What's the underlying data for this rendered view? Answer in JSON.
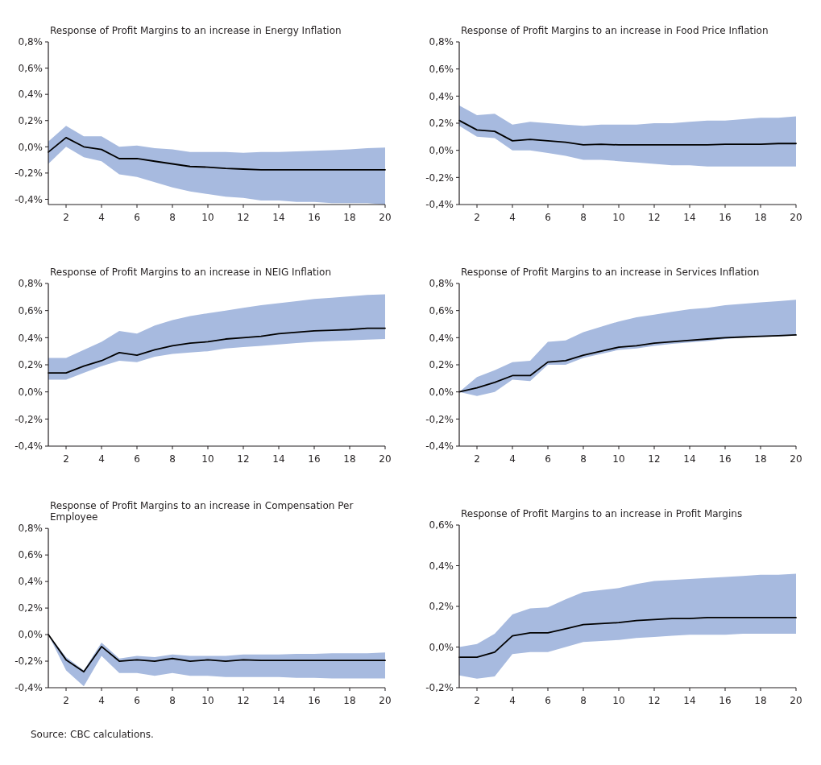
{
  "chart_data": [
    {
      "type": "line",
      "title": "Response of Profit Margins to an increase in Energy Inflation",
      "x": [
        1,
        2,
        3,
        4,
        5,
        6,
        7,
        8,
        9,
        10,
        11,
        12,
        13,
        14,
        15,
        16,
        17,
        18,
        19,
        20
      ],
      "xlim": [
        1,
        20
      ],
      "xticks": [
        2,
        4,
        6,
        8,
        10,
        12,
        14,
        16,
        18,
        20
      ],
      "ylim": [
        -0.44,
        0.8
      ],
      "yticks": [
        {
          "value": -0.4,
          "label": "-0,4%"
        },
        {
          "value": -0.2,
          "label": "-0,2%"
        },
        {
          "value": 0,
          "label": "0,0%"
        },
        {
          "value": 0.2,
          "label": "0,2%"
        },
        {
          "value": 0.4,
          "label": "0,4%"
        },
        {
          "value": 0.6,
          "label": "0,6%"
        },
        {
          "value": 0.8,
          "label": "0,8%"
        }
      ],
      "series": [
        {
          "color": "#000000",
          "values": [
            -0.04,
            0.07,
            0.0,
            -0.02,
            -0.09,
            -0.09,
            -0.11,
            -0.13,
            -0.15,
            -0.155,
            -0.165,
            -0.17,
            -0.175,
            -0.175,
            -0.175,
            -0.175,
            -0.175,
            -0.175,
            -0.175,
            -0.175
          ],
          "upper": [
            0.04,
            0.16,
            0.08,
            0.08,
            0.0,
            0.01,
            -0.01,
            -0.02,
            -0.04,
            -0.04,
            -0.04,
            -0.045,
            -0.04,
            -0.04,
            -0.035,
            -0.03,
            -0.025,
            -0.02,
            -0.01,
            -0.005
          ],
          "lower": [
            -0.13,
            0.0,
            -0.08,
            -0.11,
            -0.21,
            -0.23,
            -0.27,
            -0.31,
            -0.34,
            -0.36,
            -0.38,
            -0.39,
            -0.41,
            -0.41,
            -0.42,
            -0.42,
            -0.43,
            -0.43,
            -0.43,
            -0.44
          ]
        }
      ]
    },
    {
      "type": "line",
      "title": "Response of Profit Margins to an increase in Food Price Inflation",
      "x": [
        1,
        2,
        3,
        4,
        5,
        6,
        7,
        8,
        9,
        10,
        11,
        12,
        13,
        14,
        15,
        16,
        17,
        18,
        19,
        20
      ],
      "xlim": [
        1,
        20
      ],
      "xticks": [
        2,
        4,
        6,
        8,
        10,
        12,
        14,
        16,
        18,
        20
      ],
      "ylim": [
        -0.4,
        0.8
      ],
      "yticks": [
        {
          "value": -0.4,
          "label": "-0,4%"
        },
        {
          "value": -0.2,
          "label": "-0,2%"
        },
        {
          "value": 0,
          "label": "0,0%"
        },
        {
          "value": 0.2,
          "label": "0,2%"
        },
        {
          "value": 0.4,
          "label": "0,4%"
        },
        {
          "value": 0.6,
          "label": "0,6%"
        },
        {
          "value": 0.8,
          "label": "0,8%"
        }
      ],
      "series": [
        {
          "color": "#000000",
          "values": [
            0.22,
            0.15,
            0.14,
            0.07,
            0.08,
            0.07,
            0.06,
            0.04,
            0.045,
            0.04,
            0.04,
            0.04,
            0.04,
            0.04,
            0.04,
            0.045,
            0.045,
            0.045,
            0.05,
            0.05
          ],
          "upper": [
            0.33,
            0.26,
            0.27,
            0.19,
            0.21,
            0.2,
            0.19,
            0.18,
            0.19,
            0.19,
            0.19,
            0.2,
            0.2,
            0.21,
            0.22,
            0.22,
            0.23,
            0.24,
            0.24,
            0.25
          ],
          "lower": [
            0.18,
            0.1,
            0.09,
            0.0,
            0.0,
            -0.02,
            -0.04,
            -0.07,
            -0.07,
            -0.08,
            -0.09,
            -0.1,
            -0.11,
            -0.11,
            -0.12,
            -0.12,
            -0.12,
            -0.12,
            -0.12,
            -0.12
          ]
        }
      ]
    },
    {
      "type": "line",
      "title": "Response of Profit Margins to an increase in NEIG Inflation",
      "x": [
        1,
        2,
        3,
        4,
        5,
        6,
        7,
        8,
        9,
        10,
        11,
        12,
        13,
        14,
        15,
        16,
        17,
        18,
        19,
        20
      ],
      "xlim": [
        1,
        20
      ],
      "xticks": [
        2,
        4,
        6,
        8,
        10,
        12,
        14,
        16,
        18,
        20
      ],
      "ylim": [
        -0.4,
        0.8
      ],
      "yticks": [
        {
          "value": -0.4,
          "label": "-0,4%"
        },
        {
          "value": -0.2,
          "label": "-0,2%"
        },
        {
          "value": 0,
          "label": "0,0%"
        },
        {
          "value": 0.2,
          "label": "0,2%"
        },
        {
          "value": 0.4,
          "label": "0,4%"
        },
        {
          "value": 0.6,
          "label": "0,6%"
        },
        {
          "value": 0.8,
          "label": "0,8%"
        }
      ],
      "series": [
        {
          "color": "#000000",
          "values": [
            0.14,
            0.14,
            0.19,
            0.23,
            0.29,
            0.27,
            0.31,
            0.34,
            0.36,
            0.37,
            0.39,
            0.4,
            0.41,
            0.43,
            0.44,
            0.45,
            0.455,
            0.46,
            0.47,
            0.47
          ],
          "upper": [
            0.25,
            0.25,
            0.31,
            0.37,
            0.45,
            0.43,
            0.49,
            0.53,
            0.56,
            0.58,
            0.6,
            0.62,
            0.64,
            0.655,
            0.67,
            0.685,
            0.695,
            0.705,
            0.715,
            0.72
          ],
          "lower": [
            0.09,
            0.09,
            0.14,
            0.19,
            0.23,
            0.22,
            0.26,
            0.28,
            0.29,
            0.3,
            0.32,
            0.33,
            0.34,
            0.35,
            0.36,
            0.37,
            0.375,
            0.38,
            0.385,
            0.39
          ]
        }
      ]
    },
    {
      "type": "line",
      "title": "Response of Profit Margins to an increase in Services Inflation",
      "x": [
        1,
        2,
        3,
        4,
        5,
        6,
        7,
        8,
        9,
        10,
        11,
        12,
        13,
        14,
        15,
        16,
        17,
        18,
        19,
        20
      ],
      "xlim": [
        1,
        20
      ],
      "xticks": [
        2,
        4,
        6,
        8,
        10,
        12,
        14,
        16,
        18,
        20
      ],
      "ylim": [
        -0.4,
        0.8
      ],
      "yticks": [
        {
          "value": -0.4,
          "label": "-0,4%"
        },
        {
          "value": -0.2,
          "label": "-0,2%"
        },
        {
          "value": 0,
          "label": "0,0%"
        },
        {
          "value": 0.2,
          "label": "0,2%"
        },
        {
          "value": 0.4,
          "label": "0,4%"
        },
        {
          "value": 0.6,
          "label": "0,6%"
        },
        {
          "value": 0.8,
          "label": "0,8%"
        }
      ],
      "series": [
        {
          "color": "#000000",
          "values": [
            0.0,
            0.03,
            0.07,
            0.12,
            0.12,
            0.22,
            0.23,
            0.27,
            0.3,
            0.33,
            0.34,
            0.36,
            0.37,
            0.38,
            0.39,
            0.4,
            0.405,
            0.41,
            0.415,
            0.42
          ],
          "upper": [
            0.0,
            0.11,
            0.16,
            0.22,
            0.23,
            0.37,
            0.38,
            0.44,
            0.48,
            0.52,
            0.55,
            0.57,
            0.59,
            0.61,
            0.62,
            0.64,
            0.65,
            0.66,
            0.67,
            0.68
          ],
          "lower": [
            0.0,
            -0.03,
            0.0,
            0.09,
            0.08,
            0.2,
            0.2,
            0.25,
            0.28,
            0.31,
            0.32,
            0.34,
            0.355,
            0.365,
            0.375,
            0.39,
            0.4,
            0.405,
            0.41,
            0.415
          ]
        }
      ]
    },
    {
      "type": "line",
      "title": "Response of Profit Margins to an increase in Compensation Per Employee",
      "x": [
        1,
        2,
        3,
        4,
        5,
        6,
        7,
        8,
        9,
        10,
        11,
        12,
        13,
        14,
        15,
        16,
        17,
        18,
        19,
        20
      ],
      "xlim": [
        1,
        20
      ],
      "xticks": [
        2,
        4,
        6,
        8,
        10,
        12,
        14,
        16,
        18,
        20
      ],
      "ylim": [
        -0.4,
        0.8
      ],
      "yticks": [
        {
          "value": -0.4,
          "label": "-0,4%"
        },
        {
          "value": -0.2,
          "label": "-0,2%"
        },
        {
          "value": 0,
          "label": "0,0%"
        },
        {
          "value": 0.2,
          "label": "0,2%"
        },
        {
          "value": 0.4,
          "label": "0,4%"
        },
        {
          "value": 0.6,
          "label": "0,6%"
        },
        {
          "value": 0.8,
          "label": "0,8%"
        }
      ],
      "annotations": [
        "Source: CBC calculations."
      ],
      "series": [
        {
          "color": "#000000",
          "values": [
            0.0,
            -0.19,
            -0.28,
            -0.09,
            -0.2,
            -0.19,
            -0.2,
            -0.18,
            -0.2,
            -0.19,
            -0.2,
            -0.19,
            -0.195,
            -0.195,
            -0.195,
            -0.195,
            -0.195,
            -0.195,
            -0.195,
            -0.195
          ],
          "upper": [
            0.0,
            -0.17,
            -0.27,
            -0.06,
            -0.18,
            -0.16,
            -0.17,
            -0.15,
            -0.16,
            -0.16,
            -0.16,
            -0.15,
            -0.15,
            -0.15,
            -0.145,
            -0.145,
            -0.14,
            -0.14,
            -0.14,
            -0.135
          ],
          "lower": [
            0.0,
            -0.27,
            -0.39,
            -0.16,
            -0.29,
            -0.29,
            -0.31,
            -0.29,
            -0.31,
            -0.31,
            -0.32,
            -0.32,
            -0.32,
            -0.32,
            -0.325,
            -0.325,
            -0.33,
            -0.33,
            -0.33,
            -0.33
          ]
        }
      ]
    },
    {
      "type": "line",
      "title": "Response of Profit Margins to an increase in Profit Margins",
      "x": [
        1,
        2,
        3,
        4,
        5,
        6,
        7,
        8,
        9,
        10,
        11,
        12,
        13,
        14,
        15,
        16,
        17,
        18,
        19,
        20
      ],
      "xlim": [
        1,
        20
      ],
      "xticks": [
        2,
        4,
        6,
        8,
        10,
        12,
        14,
        16,
        18,
        20
      ],
      "ylim": [
        -0.2,
        0.6
      ],
      "yticks": [
        {
          "value": -0.2,
          "label": "-0,2%"
        },
        {
          "value": 0,
          "label": "0,0%"
        },
        {
          "value": 0.2,
          "label": "0,2%"
        },
        {
          "value": 0.4,
          "label": "0,4%"
        },
        {
          "value": 0.6,
          "label": "0,6%"
        }
      ],
      "series": [
        {
          "color": "#000000",
          "values": [
            -0.05,
            -0.05,
            -0.025,
            0.055,
            0.07,
            0.07,
            0.09,
            0.11,
            0.115,
            0.12,
            0.13,
            0.135,
            0.14,
            0.14,
            0.145,
            0.145,
            0.145,
            0.145,
            0.145,
            0.145
          ],
          "upper": [
            0.0,
            0.015,
            0.065,
            0.16,
            0.19,
            0.195,
            0.235,
            0.27,
            0.28,
            0.29,
            0.31,
            0.325,
            0.33,
            0.335,
            0.34,
            0.345,
            0.35,
            0.355,
            0.355,
            0.36
          ],
          "lower": [
            -0.14,
            -0.155,
            -0.145,
            -0.035,
            -0.025,
            -0.025,
            0.0,
            0.025,
            0.03,
            0.035,
            0.045,
            0.05,
            0.055,
            0.06,
            0.06,
            0.06,
            0.065,
            0.065,
            0.065,
            0.065
          ]
        }
      ]
    }
  ]
}
